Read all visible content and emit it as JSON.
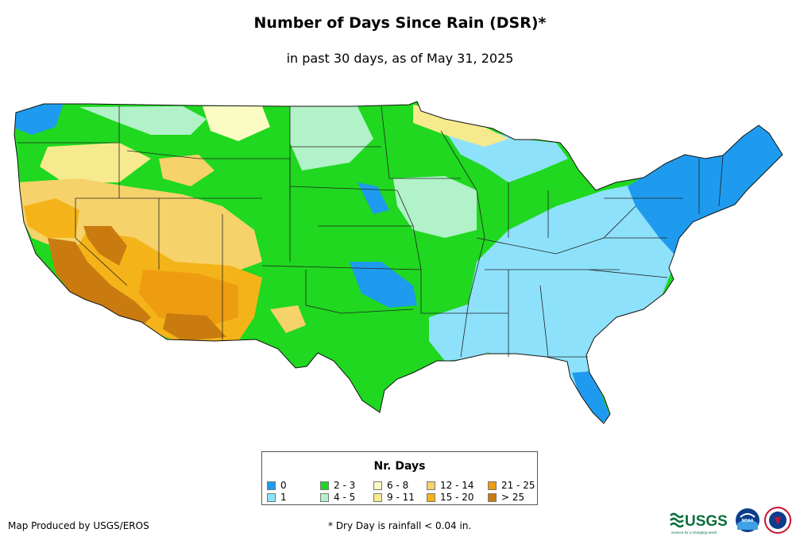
{
  "title": "Number of Days Since Rain (DSR)*",
  "subtitle": "in past 30 days, as of May 31, 2025",
  "legend": {
    "title": "Nr. Days",
    "items": [
      {
        "label": "0",
        "color": "#1e9bef"
      },
      {
        "label": "1",
        "color": "#8ee1fb"
      },
      {
        "label": "2 - 3",
        "color": "#1fd81f"
      },
      {
        "label": "4 - 5",
        "color": "#b1f2c8"
      },
      {
        "label": "6 - 8",
        "color": "#fbfbc4"
      },
      {
        "label": "9 - 11",
        "color": "#f7ea8e"
      },
      {
        "label": "12 - 14",
        "color": "#f5d26a"
      },
      {
        "label": "15 - 20",
        "color": "#f4b419"
      },
      {
        "label": "21 - 25",
        "color": "#ee9c10"
      },
      {
        "label": "> 25",
        "color": "#c97b0f"
      }
    ]
  },
  "credit": "Map Produced by USGS/EROS",
  "footnote": "* Dry Day is rainfall < 0.04 in.",
  "logos": {
    "usgs": "USGS",
    "usgs_tagline": "science for a changing world",
    "noaa": "NOAA"
  }
}
